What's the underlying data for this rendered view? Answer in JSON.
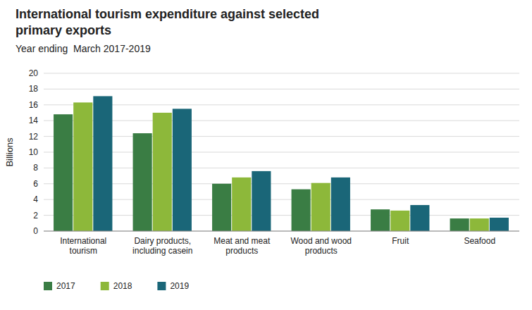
{
  "chart_data": {
    "type": "bar",
    "title": "International tourism expenditure against selected\nprimary exports",
    "subtitle": "Year ending  March 2017-2019",
    "y_label": "Billions",
    "categories": [
      "International\ntourism",
      "Dairy products,\nincluding casein",
      "Meat and meat\nproducts",
      "Wood and wood\nproducts",
      "Fruit",
      "Seafood"
    ],
    "series": [
      {
        "name": "2017",
        "color": "#3a7d44",
        "values": [
          14.8,
          12.4,
          6.0,
          5.3,
          2.75,
          1.6
        ]
      },
      {
        "name": "2018",
        "color": "#8db83a",
        "values": [
          16.3,
          15.0,
          6.8,
          6.1,
          2.6,
          1.6
        ]
      },
      {
        "name": "2019",
        "color": "#1a6678",
        "values": [
          17.1,
          15.5,
          7.6,
          6.8,
          3.3,
          1.7
        ]
      }
    ],
    "ylim": [
      0,
      20
    ],
    "yticks": [
      0,
      2,
      4,
      6,
      8,
      10,
      12,
      14,
      16,
      18,
      20
    ],
    "grid": true,
    "legend": "bottom"
  }
}
